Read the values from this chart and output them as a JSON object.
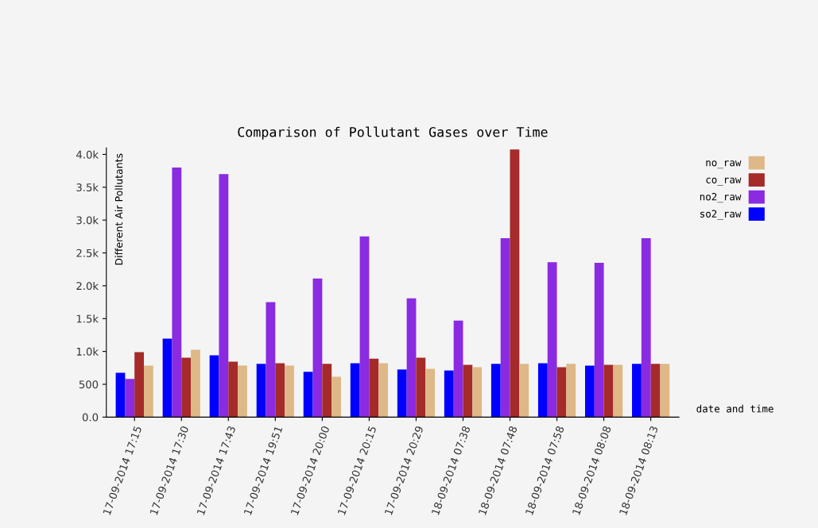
{
  "chart_data": {
    "type": "bar",
    "title": "Comparison of Pollutant Gases over Time",
    "xlabel": "date and time",
    "ylabel": "Different Air Pollutants",
    "categories": [
      "17-09-2014 17:15",
      "17-09-2014 17:30",
      "17-09-2014 17:43",
      "17-09-2014 19:51",
      "17-09-2014 20:00",
      "17-09-2014 20:15",
      "17-09-2014 20:29",
      "18-09-2014 07:38",
      "18-09-2014 07:48",
      "18-09-2014 07:58",
      "18-09-2014 08:08",
      "18-09-2014 08:13"
    ],
    "series": [
      {
        "name": "so2_raw",
        "color": "#0000ff",
        "values": [
          675,
          1195,
          940,
          810,
          690,
          820,
          725,
          710,
          810,
          820,
          785,
          810
        ]
      },
      {
        "name": "no2_raw",
        "color": "#8a2be2",
        "values": [
          580,
          3800,
          3700,
          1750,
          2110,
          2750,
          1810,
          1470,
          2725,
          2360,
          2350,
          2725
        ]
      },
      {
        "name": "co_raw",
        "color": "#a52a2a",
        "values": [
          990,
          905,
          845,
          820,
          810,
          890,
          905,
          795,
          4075,
          760,
          795,
          810
        ]
      },
      {
        "name": "no_raw",
        "color": "#deb887",
        "values": [
          785,
          1025,
          785,
          785,
          615,
          820,
          735,
          760,
          810,
          810,
          795,
          810
        ]
      }
    ],
    "ylim": [
      0,
      4100
    ],
    "yticks": [
      {
        "value": 0,
        "label": "0.0"
      },
      500,
      {
        "value": 1000,
        "label": "1.0k"
      },
      {
        "value": 1500,
        "label": "1.5k"
      },
      {
        "value": 2000,
        "label": "2.0k"
      },
      {
        "value": 2500,
        "label": "2.5k"
      },
      {
        "value": 3000,
        "label": "3.0k"
      },
      {
        "value": 3500,
        "label": "3.5k"
      },
      {
        "value": 4000,
        "label": "4.0k"
      }
    ],
    "grid": false,
    "legend": "right"
  }
}
